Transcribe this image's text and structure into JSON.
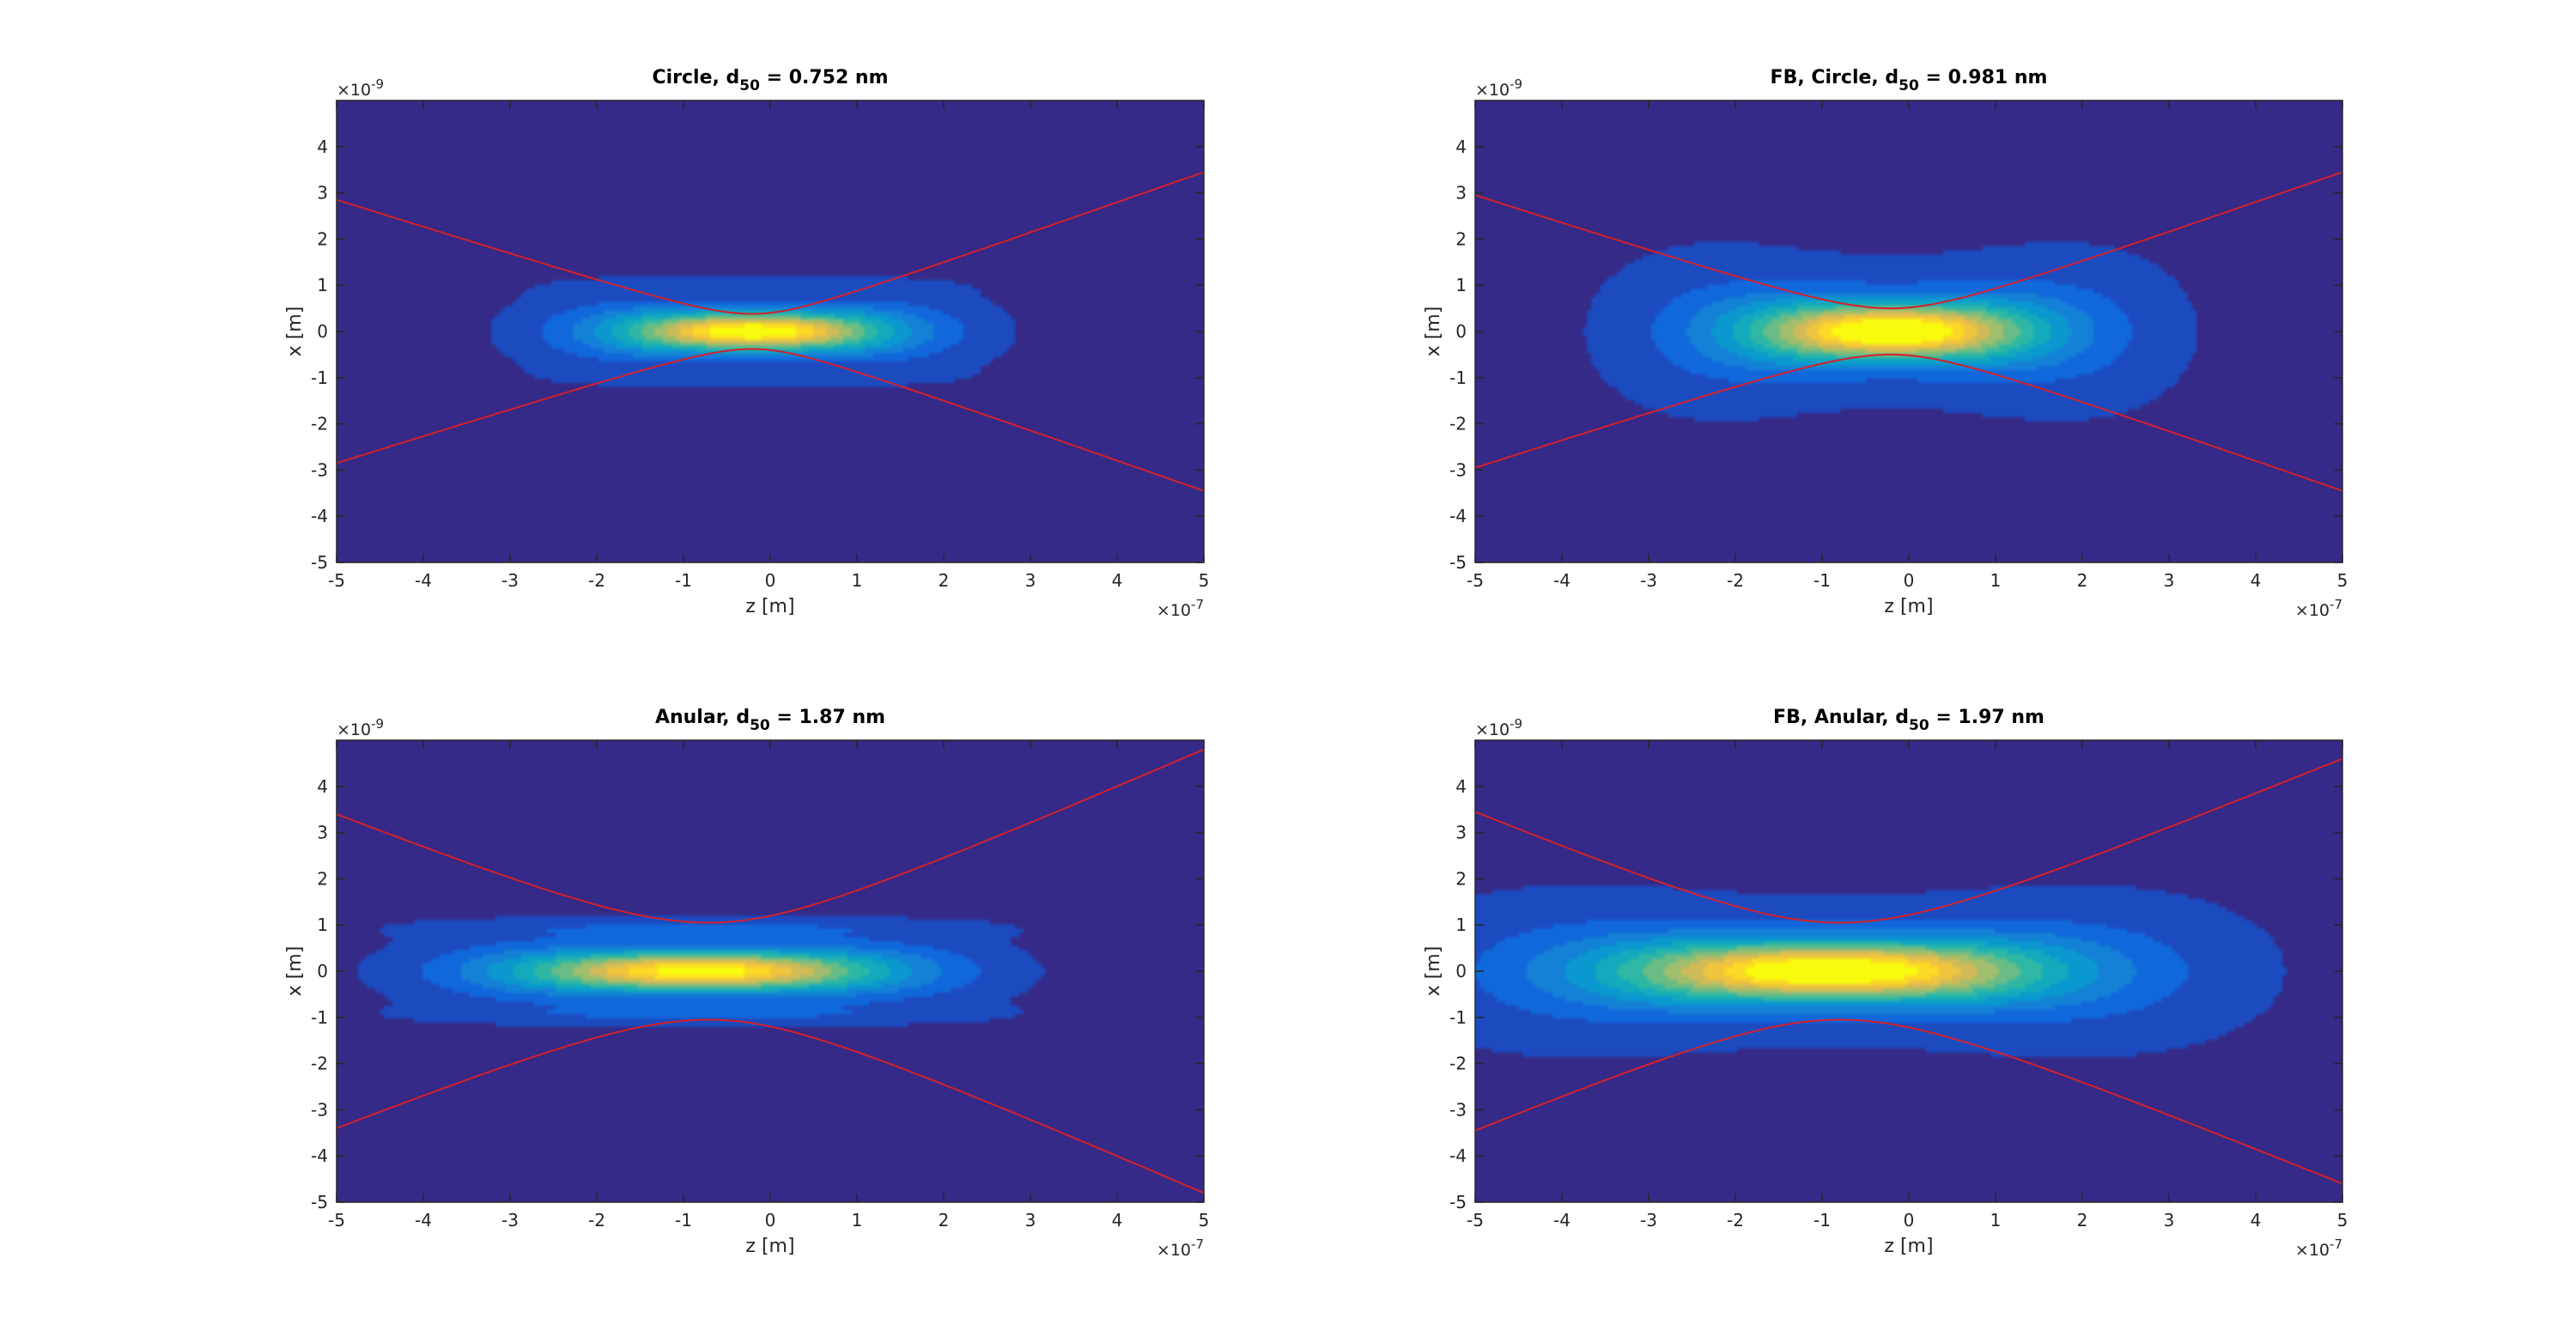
{
  "figure": {
    "background": "#ffffff",
    "colormap": "parula",
    "colormap_stops": [
      "#352a87",
      "#0f5cdd",
      "#1481d6",
      "#06a4ca",
      "#2eb7a4",
      "#87bf77",
      "#d1bb59",
      "#fec832",
      "#f9fb0e"
    ]
  },
  "chart_data": [
    {
      "type": "heatmap",
      "title_prefix": "Circle, d",
      "title_sub": "50",
      "title_suffix": " = 0.752 nm",
      "xlabel": "z [m]",
      "ylabel": "x [m]",
      "xlim": [
        -5e-07,
        5e-07
      ],
      "ylim": [
        -5e-09,
        5e-09
      ],
      "xticks": [
        "-5",
        "-4",
        "-3",
        "-2",
        "-1",
        "0",
        "1",
        "2",
        "3",
        "4",
        "5"
      ],
      "yticks": [
        "-5",
        "-4",
        "-3",
        "-2",
        "-1",
        "0",
        "1",
        "2",
        "3",
        "4"
      ],
      "x_exponent": "-7",
      "y_exponent": "-9",
      "beam": {
        "center_z": -2e-08,
        "sigma_z": 1.2e-07,
        "sigma_x": 2.8e-10,
        "halo": 0.35,
        "side_lobes": 0.12,
        "lobe_offset": 1e-09
      },
      "envelope": {
        "color": "#d6202a",
        "waist_x": 3.8e-10,
        "waist_z": -2e-08,
        "edge_left": 2.85e-09,
        "edge_right": 3.45e-09
      }
    },
    {
      "type": "heatmap",
      "title_prefix": "FB, Circle, d",
      "title_sub": "50",
      "title_suffix": " = 0.981 nm",
      "xlabel": "z [m]",
      "ylabel": "x [m]",
      "xlim": [
        -5e-07,
        5e-07
      ],
      "ylim": [
        -5e-09,
        5e-09
      ],
      "xticks": [
        "-5",
        "-4",
        "-3",
        "-2",
        "-1",
        "0",
        "1",
        "2",
        "3",
        "4",
        "5"
      ],
      "yticks": [
        "-5",
        "-4",
        "-3",
        "-2",
        "-1",
        "0",
        "1",
        "2",
        "3",
        "4"
      ],
      "x_exponent": "-7",
      "y_exponent": "-9",
      "beam": {
        "center_z": -2e-08,
        "sigma_z": 1.25e-07,
        "sigma_x": 4e-10,
        "halo": 0.55,
        "side_lobes": 0.0,
        "lobe_offset": 1e-09
      },
      "envelope": {
        "color": "#d6202a",
        "waist_x": 5e-10,
        "waist_z": -2e-08,
        "edge_left": 2.95e-09,
        "edge_right": 3.45e-09
      }
    },
    {
      "type": "heatmap",
      "title_prefix": "Anular, d",
      "title_sub": "50",
      "title_suffix": " = 1.87 nm",
      "xlabel": "z [m]",
      "ylabel": "x [m]",
      "xlim": [
        -5e-07,
        5e-07
      ],
      "ylim": [
        -5e-09,
        5e-09
      ],
      "xticks": [
        "-5",
        "-4",
        "-3",
        "-2",
        "-1",
        "0",
        "1",
        "2",
        "3",
        "4",
        "5"
      ],
      "yticks": [
        "-5",
        "-4",
        "-3",
        "-2",
        "-1",
        "0",
        "1",
        "2",
        "3",
        "4"
      ],
      "x_exponent": "-7",
      "y_exponent": "-9",
      "beam": {
        "center_z": -8e-08,
        "sigma_z": 1.7e-07,
        "sigma_x": 3e-10,
        "halo": 0.2,
        "side_lobes": 0.3,
        "lobe_offset": 9.5e-10
      },
      "envelope": {
        "color": "#d6202a",
        "waist_x": 1.05e-09,
        "waist_z": -7e-08,
        "edge_left": 3.4e-09,
        "edge_right": 4.8e-09
      }
    },
    {
      "type": "heatmap",
      "title_prefix": "FB, Anular, d",
      "title_sub": "50",
      "title_suffix": " = 1.97 nm",
      "xlabel": "z [m]",
      "ylabel": "x [m]",
      "xlim": [
        -5e-07,
        5e-07
      ],
      "ylim": [
        -5e-09,
        5e-09
      ],
      "xticks": [
        "-5",
        "-4",
        "-3",
        "-2",
        "-1",
        "0",
        "1",
        "2",
        "3",
        "4",
        "5"
      ],
      "yticks": [
        "-5",
        "-4",
        "-3",
        "-2",
        "-1",
        "0",
        "1",
        "2",
        "3",
        "4"
      ],
      "x_exponent": "-7",
      "y_exponent": "-9",
      "beam": {
        "center_z": -9e-08,
        "sigma_z": 1.9e-07,
        "sigma_x": 4.2e-10,
        "halo": 0.5,
        "side_lobes": 0.0,
        "lobe_offset": 1e-09
      },
      "envelope": {
        "color": "#d6202a",
        "waist_x": 1.05e-09,
        "waist_z": -8e-08,
        "edge_left": 3.45e-09,
        "edge_right": 4.6e-09
      }
    }
  ]
}
